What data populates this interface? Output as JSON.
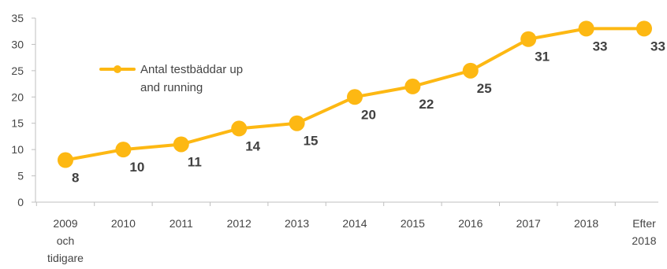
{
  "chart_data": {
    "type": "line",
    "title": "",
    "xlabel": "",
    "ylabel": "",
    "categories": [
      [
        "2009",
        "och",
        "tidigare"
      ],
      [
        "2010"
      ],
      [
        "2011"
      ],
      [
        "2012"
      ],
      [
        "2013"
      ],
      [
        "2014"
      ],
      [
        "2015"
      ],
      [
        "2016"
      ],
      [
        "2017"
      ],
      [
        "2018"
      ],
      [
        "Efter",
        "2018"
      ]
    ],
    "series": [
      {
        "name": [
          "Antal testbäddar up",
          "and running"
        ],
        "values": [
          8,
          10,
          11,
          14,
          15,
          20,
          22,
          25,
          31,
          33,
          33
        ],
        "labels": [
          "8",
          "10",
          "11",
          "14",
          "15",
          "20",
          "22",
          "25",
          "31",
          "33",
          "33"
        ],
        "color": "#FDB813"
      }
    ],
    "ylim": [
      0,
      35
    ],
    "yticks": [
      "0",
      "5",
      "10",
      "15",
      "20",
      "25",
      "30",
      "35"
    ],
    "grid": false,
    "legend_position": "top-left",
    "axis_color": "#BFBFBF"
  }
}
